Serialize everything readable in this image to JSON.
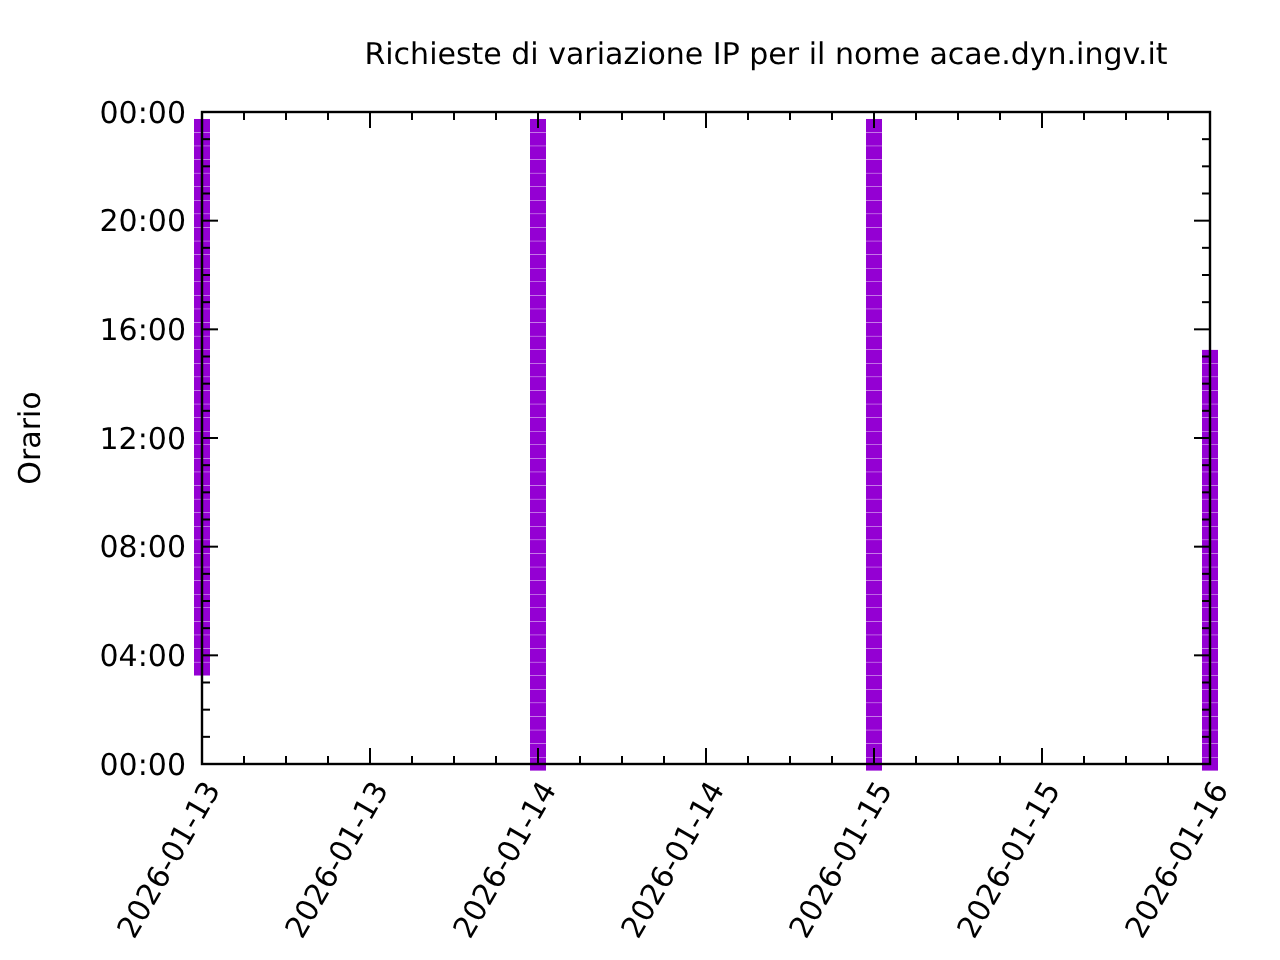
{
  "chart_data": {
    "type": "scatter",
    "title": "Richieste di variazione IP per il nome acae.dyn.ingv.it",
    "ylabel": "Orario",
    "marker": "square",
    "xlim": [
      "2026-01-13",
      "2026-01-16"
    ],
    "xticks": [
      {
        "value": "2026-01-13",
        "label": "2026-01-13"
      },
      {
        "value": "2026-01-13T03:00",
        "label": null
      },
      {
        "value": "2026-01-13T06:00",
        "label": null
      },
      {
        "value": "2026-01-13T09:00",
        "label": null
      },
      {
        "value": "2026-01-13T12:00",
        "label": "2026-01-13"
      },
      {
        "value": "2026-01-13T15:00",
        "label": null
      },
      {
        "value": "2026-01-13T18:00",
        "label": null
      },
      {
        "value": "2026-01-13T21:00",
        "label": null
      },
      {
        "value": "2026-01-14",
        "label": "2026-01-14"
      },
      {
        "value": "2026-01-14T03:00",
        "label": null
      },
      {
        "value": "2026-01-14T06:00",
        "label": null
      },
      {
        "value": "2026-01-14T09:00",
        "label": null
      },
      {
        "value": "2026-01-14T12:00",
        "label": "2026-01-14"
      },
      {
        "value": "2026-01-14T15:00",
        "label": null
      },
      {
        "value": "2026-01-14T18:00",
        "label": null
      },
      {
        "value": "2026-01-14T21:00",
        "label": null
      },
      {
        "value": "2026-01-15",
        "label": "2026-01-15"
      },
      {
        "value": "2026-01-15T03:00",
        "label": null
      },
      {
        "value": "2026-01-15T06:00",
        "label": null
      },
      {
        "value": "2026-01-15T09:00",
        "label": null
      },
      {
        "value": "2026-01-15T12:00",
        "label": "2026-01-15"
      },
      {
        "value": "2026-01-15T15:00",
        "label": null
      },
      {
        "value": "2026-01-15T18:00",
        "label": null
      },
      {
        "value": "2026-01-15T21:00",
        "label": null
      },
      {
        "value": "2026-01-16",
        "label": "2026-01-16"
      }
    ],
    "ylim": [
      0,
      24
    ],
    "yticks": [
      {
        "value": 0,
        "label": "00:00"
      },
      {
        "value": 1,
        "label": null
      },
      {
        "value": 2,
        "label": null
      },
      {
        "value": 3,
        "label": null
      },
      {
        "value": 4,
        "label": "04:00"
      },
      {
        "value": 5,
        "label": null
      },
      {
        "value": 6,
        "label": null
      },
      {
        "value": 7,
        "label": null
      },
      {
        "value": 8,
        "label": "08:00"
      },
      {
        "value": 9,
        "label": null
      },
      {
        "value": 10,
        "label": null
      },
      {
        "value": 11,
        "label": null
      },
      {
        "value": 12,
        "label": "12:00"
      },
      {
        "value": 13,
        "label": null
      },
      {
        "value": 14,
        "label": null
      },
      {
        "value": 15,
        "label": null
      },
      {
        "value": 16,
        "label": "16:00"
      },
      {
        "value": 17,
        "label": null
      },
      {
        "value": 18,
        "label": null
      },
      {
        "value": 19,
        "label": null
      },
      {
        "value": 20,
        "label": "20:00"
      },
      {
        "value": 21,
        "label": null
      },
      {
        "value": 22,
        "label": null
      },
      {
        "value": 23,
        "label": null
      },
      {
        "value": 24,
        "label": "00:00"
      }
    ],
    "series": [
      {
        "color": "#9400d3",
        "x": [
          "2026-01-13",
          "2026-01-13",
          "2026-01-13",
          "2026-01-13",
          "2026-01-13",
          "2026-01-13",
          "2026-01-13",
          "2026-01-13",
          "2026-01-13",
          "2026-01-13",
          "2026-01-13",
          "2026-01-13",
          "2026-01-13",
          "2026-01-13",
          "2026-01-13",
          "2026-01-13",
          "2026-01-13",
          "2026-01-13",
          "2026-01-13",
          "2026-01-13",
          "2026-01-13",
          "2026-01-13",
          "2026-01-13",
          "2026-01-13",
          "2026-01-13",
          "2026-01-13",
          "2026-01-13",
          "2026-01-13",
          "2026-01-13",
          "2026-01-13",
          "2026-01-13",
          "2026-01-13",
          "2026-01-13",
          "2026-01-13",
          "2026-01-13",
          "2026-01-13",
          "2026-01-13",
          "2026-01-13",
          "2026-01-13",
          "2026-01-13",
          "2026-01-13"
        ],
        "values": [
          3.5,
          4,
          4.5,
          5,
          5.5,
          6,
          6.5,
          7,
          7.5,
          8,
          8.5,
          9,
          9.5,
          10,
          10.5,
          11,
          11.5,
          12,
          12.5,
          13,
          13.5,
          14,
          14.5,
          15,
          15.5,
          16,
          16.5,
          17,
          17.5,
          18,
          18.5,
          19,
          19.5,
          20,
          20.5,
          21,
          21.5,
          22,
          22.5,
          23,
          23.5
        ]
      },
      {
        "color": "#9400d3",
        "x": [
          "2026-01-14",
          "2026-01-14",
          "2026-01-14",
          "2026-01-14",
          "2026-01-14",
          "2026-01-14",
          "2026-01-14",
          "2026-01-14",
          "2026-01-14",
          "2026-01-14",
          "2026-01-14",
          "2026-01-14",
          "2026-01-14",
          "2026-01-14",
          "2026-01-14",
          "2026-01-14",
          "2026-01-14",
          "2026-01-14",
          "2026-01-14",
          "2026-01-14",
          "2026-01-14",
          "2026-01-14",
          "2026-01-14",
          "2026-01-14",
          "2026-01-14",
          "2026-01-14",
          "2026-01-14",
          "2026-01-14",
          "2026-01-14",
          "2026-01-14",
          "2026-01-14",
          "2026-01-14",
          "2026-01-14",
          "2026-01-14",
          "2026-01-14",
          "2026-01-14",
          "2026-01-14",
          "2026-01-14",
          "2026-01-14",
          "2026-01-14",
          "2026-01-14",
          "2026-01-14",
          "2026-01-14",
          "2026-01-14",
          "2026-01-14",
          "2026-01-14",
          "2026-01-14",
          "2026-01-14"
        ],
        "values": [
          0,
          0.5,
          1,
          1.5,
          2,
          2.5,
          3,
          3.5,
          4,
          4.5,
          5,
          5.5,
          6,
          6.5,
          7,
          7.5,
          8,
          8.5,
          9,
          9.5,
          10,
          10.5,
          11,
          11.5,
          12,
          12.5,
          13,
          13.5,
          14,
          14.5,
          15,
          15.5,
          16,
          16.5,
          17,
          17.5,
          18,
          18.5,
          19,
          19.5,
          20,
          20.5,
          21,
          21.5,
          22,
          22.5,
          23,
          23.5
        ]
      },
      {
        "color": "#9400d3",
        "x": [
          "2026-01-15",
          "2026-01-15",
          "2026-01-15",
          "2026-01-15",
          "2026-01-15",
          "2026-01-15",
          "2026-01-15",
          "2026-01-15",
          "2026-01-15",
          "2026-01-15",
          "2026-01-15",
          "2026-01-15",
          "2026-01-15",
          "2026-01-15",
          "2026-01-15",
          "2026-01-15",
          "2026-01-15",
          "2026-01-15",
          "2026-01-15",
          "2026-01-15",
          "2026-01-15",
          "2026-01-15",
          "2026-01-15",
          "2026-01-15",
          "2026-01-15",
          "2026-01-15",
          "2026-01-15",
          "2026-01-15",
          "2026-01-15",
          "2026-01-15",
          "2026-01-15",
          "2026-01-15",
          "2026-01-15",
          "2026-01-15",
          "2026-01-15",
          "2026-01-15",
          "2026-01-15",
          "2026-01-15",
          "2026-01-15",
          "2026-01-15",
          "2026-01-15",
          "2026-01-15",
          "2026-01-15",
          "2026-01-15",
          "2026-01-15",
          "2026-01-15",
          "2026-01-15",
          "2026-01-15"
        ],
        "values": [
          0,
          0.5,
          1,
          1.5,
          2,
          2.5,
          3,
          3.5,
          4,
          4.5,
          5,
          5.5,
          6,
          6.5,
          7,
          7.5,
          8,
          8.5,
          9,
          9.5,
          10,
          10.5,
          11,
          11.5,
          12,
          12.5,
          13,
          13.5,
          14,
          14.5,
          15,
          15.5,
          16,
          16.5,
          17,
          17.5,
          18,
          18.5,
          19,
          19.5,
          20,
          20.5,
          21,
          21.5,
          22,
          22.5,
          23,
          23.5
        ]
      },
      {
        "color": "#9400d3",
        "x": [
          "2026-01-16",
          "2026-01-16",
          "2026-01-16",
          "2026-01-16",
          "2026-01-16",
          "2026-01-16",
          "2026-01-16",
          "2026-01-16",
          "2026-01-16",
          "2026-01-16",
          "2026-01-16",
          "2026-01-16",
          "2026-01-16",
          "2026-01-16",
          "2026-01-16",
          "2026-01-16",
          "2026-01-16",
          "2026-01-16",
          "2026-01-16",
          "2026-01-16",
          "2026-01-16",
          "2026-01-16",
          "2026-01-16",
          "2026-01-16",
          "2026-01-16",
          "2026-01-16",
          "2026-01-16",
          "2026-01-16",
          "2026-01-16",
          "2026-01-16",
          "2026-01-16"
        ],
        "values": [
          0,
          0.5,
          1,
          1.5,
          2,
          2.5,
          3,
          3.5,
          4,
          4.5,
          5,
          5.5,
          6,
          6.5,
          7,
          7.5,
          8,
          8.5,
          9,
          9.5,
          10,
          10.5,
          11,
          11.5,
          12,
          12.5,
          13,
          13.5,
          14,
          14.5,
          15
        ]
      }
    ]
  }
}
